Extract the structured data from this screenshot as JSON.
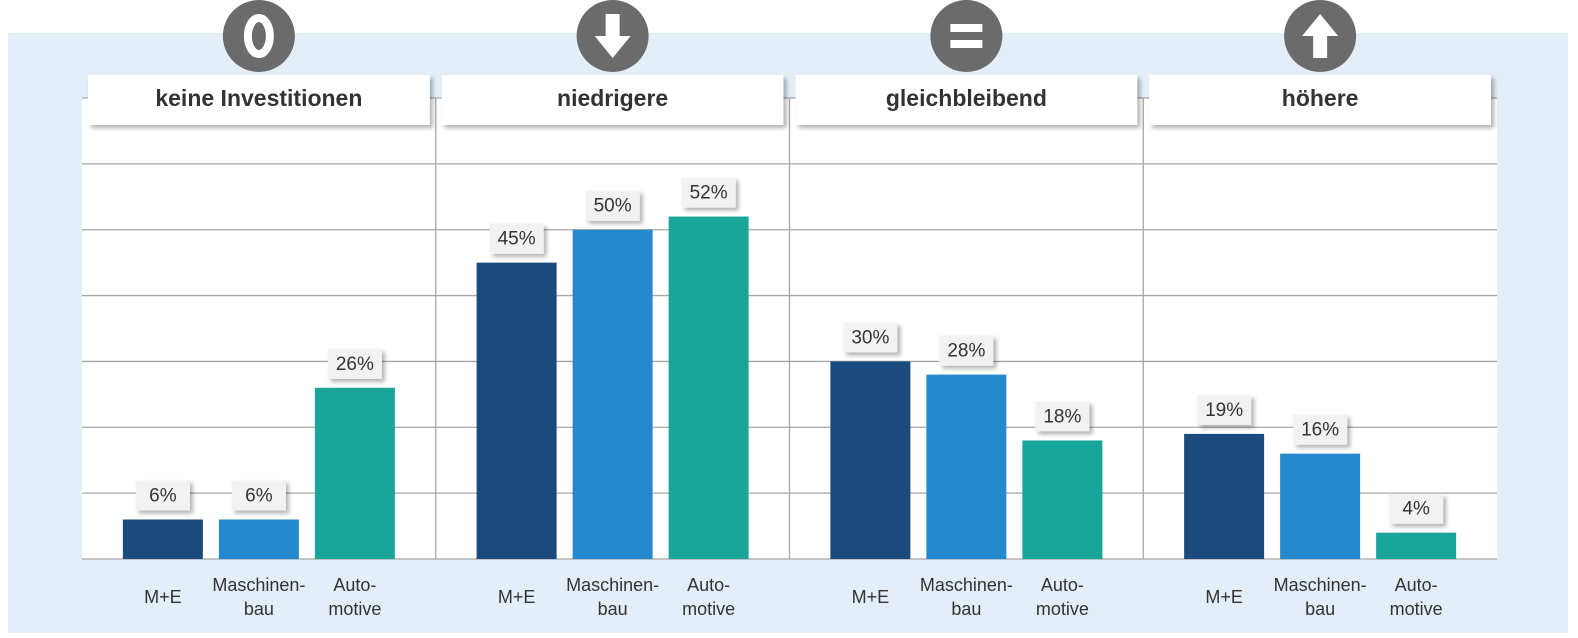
{
  "chart_data": {
    "type": "bar",
    "groups": [
      "keine Investitionen",
      "niedrigere",
      "gleichbleibend",
      "höhere"
    ],
    "series": [
      {
        "name": "M+E",
        "color": "#1b4a7d",
        "values": [
          6,
          45,
          30,
          19
        ],
        "value_labels": [
          "6%",
          "45%",
          "30%",
          "19%"
        ]
      },
      {
        "name": "Maschinen-\nbau",
        "color": "#2589cd",
        "values": [
          6,
          50,
          28,
          16
        ],
        "value_labels": [
          "6%",
          "50%",
          "28%",
          "16%"
        ]
      },
      {
        "name": "Auto-\nmotive",
        "color": "#1aa59b",
        "values": [
          26,
          52,
          18,
          4
        ],
        "value_labels": [
          "26%",
          "52%",
          "18%",
          "4%"
        ]
      }
    ],
    "ylim": [
      0,
      70
    ],
    "yticks": [
      0,
      10,
      20,
      30,
      40,
      50,
      60,
      70
    ],
    "grid": true
  }
}
